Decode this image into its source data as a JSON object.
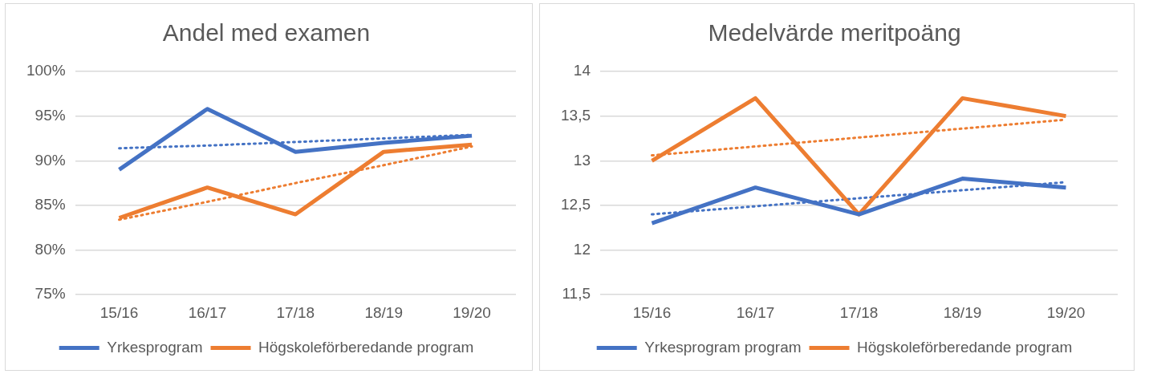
{
  "chart_data": [
    {
      "type": "line",
      "title": "Andel med examen",
      "categories": [
        "15/16",
        "16/17",
        "17/18",
        "18/19",
        "19/20"
      ],
      "ylim": [
        75,
        100
      ],
      "yticks": [
        {
          "value": 75,
          "label": "75%"
        },
        {
          "value": 80,
          "label": "80%"
        },
        {
          "value": 85,
          "label": "85%"
        },
        {
          "value": 90,
          "label": "90%"
        },
        {
          "value": 95,
          "label": "95%"
        },
        {
          "value": 100,
          "label": "100%"
        }
      ],
      "grid": "y",
      "legend": "bottom",
      "marker": "none",
      "series": [
        {
          "name": "Yrkesprogram",
          "color": "#4472c4",
          "values": [
            89,
            95.8,
            91,
            92,
            92.8
          ]
        },
        {
          "name": "Högskoleförberedande program",
          "color": "#ed7d31",
          "values": [
            83.6,
            87,
            84,
            91,
            91.8
          ]
        },
        {
          "color": "#4472c4",
          "line_style": "dotted",
          "values": [
            91.4,
            91.7,
            92.1,
            92.5,
            92.9
          ]
        },
        {
          "color": "#ed7d31",
          "line_style": "dotted",
          "values": [
            83.4,
            85.4,
            87.5,
            89.5,
            91.6
          ]
        }
      ]
    },
    {
      "type": "line",
      "title": "Medelvärde meritpoäng",
      "categories": [
        "15/16",
        "16/17",
        "17/18",
        "18/19",
        "19/20"
      ],
      "ylim": [
        11.5,
        14
      ],
      "yticks": [
        {
          "value": 11.5,
          "label": "11,5"
        },
        12,
        {
          "value": 12.5,
          "label": "12,5"
        },
        13,
        {
          "value": 13.5,
          "label": "13,5"
        },
        14
      ],
      "grid": "y",
      "legend": "bottom",
      "marker": "none",
      "series": [
        {
          "name": "Yrkesprogram program",
          "color": "#4472c4",
          "values": [
            12.3,
            12.7,
            12.4,
            12.8,
            12.7
          ]
        },
        {
          "name": "Högskoleförberedande program",
          "color": "#ed7d31",
          "values": [
            13,
            13.7,
            12.4,
            13.7,
            13.5
          ]
        },
        {
          "color": "#4472c4",
          "line_style": "dotted",
          "values": [
            12.4,
            12.49,
            12.58,
            12.67,
            12.76
          ]
        },
        {
          "color": "#ed7d31",
          "line_style": "dotted",
          "values": [
            13.06,
            13.16,
            13.26,
            13.36,
            13.46
          ]
        }
      ]
    }
  ]
}
